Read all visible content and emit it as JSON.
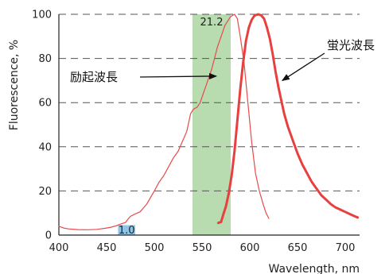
{
  "chart_data": {
    "type": "line",
    "xlabel": "Wavelength, nm",
    "ylabel": "Fluorescence, %",
    "xlim": [
      400,
      715
    ],
    "ylim": [
      0,
      100
    ],
    "x_ticks": [
      400,
      450,
      500,
      550,
      600,
      650,
      700
    ],
    "y_ticks": [
      0,
      20,
      40,
      60,
      80,
      100
    ],
    "grid": "horizontal-dashed",
    "bands": [
      {
        "x_range": [
          540,
          580
        ],
        "label": "21.2",
        "color": "#b8dbb0"
      },
      {
        "x_range": [
          462,
          480
        ],
        "label": "1.0",
        "color": "#8ec6e8"
      }
    ],
    "series": [
      {
        "color": "#e84a4a",
        "points": [
          [
            400,
            4
          ],
          [
            405,
            3.2
          ],
          [
            410,
            2.8
          ],
          [
            420,
            2.5
          ],
          [
            430,
            2.4
          ],
          [
            440,
            2.6
          ],
          [
            450,
            3.2
          ],
          [
            455,
            3.6
          ],
          [
            460,
            4.2
          ],
          [
            465,
            5
          ],
          [
            470,
            5.8
          ],
          [
            472,
            7
          ],
          [
            475,
            8.5
          ],
          [
            480,
            9.6
          ],
          [
            485,
            10.5
          ],
          [
            488,
            12
          ],
          [
            492,
            14
          ],
          [
            496,
            17
          ],
          [
            500,
            20
          ],
          [
            505,
            24
          ],
          [
            510,
            27
          ],
          [
            515,
            31
          ],
          [
            520,
            35
          ],
          [
            525,
            38
          ],
          [
            528,
            41
          ],
          [
            531,
            44
          ],
          [
            534,
            47
          ],
          [
            536,
            51
          ],
          [
            538,
            55
          ],
          [
            541,
            57
          ],
          [
            545,
            58
          ],
          [
            548,
            60
          ],
          [
            552,
            65
          ],
          [
            556,
            70
          ],
          [
            560,
            75
          ],
          [
            563,
            80
          ],
          [
            566,
            85
          ],
          [
            570,
            90
          ],
          [
            574,
            95
          ],
          [
            577,
            97
          ],
          [
            580,
            99
          ],
          [
            584,
            100
          ],
          [
            587,
            98
          ],
          [
            590,
            90
          ],
          [
            594,
            78
          ],
          [
            598,
            60
          ],
          [
            602,
            42
          ],
          [
            606,
            28
          ],
          [
            610,
            20
          ],
          [
            614,
            14
          ],
          [
            617,
            10
          ],
          [
            620,
            7.5
          ]
        ]
      },
      {
        "color": "#e8403e",
        "points": [
          [
            567,
            5.5
          ],
          [
            570,
            6
          ],
          [
            572,
            9
          ],
          [
            575,
            13
          ],
          [
            578,
            19
          ],
          [
            581,
            27
          ],
          [
            584,
            38
          ],
          [
            587,
            52
          ],
          [
            590,
            66
          ],
          [
            593,
            78
          ],
          [
            596,
            88
          ],
          [
            599,
            94
          ],
          [
            602,
            97.5
          ],
          [
            605,
            99.5
          ],
          [
            609,
            100
          ],
          [
            612,
            99.5
          ],
          [
            615,
            98
          ],
          [
            618,
            94
          ],
          [
            621,
            89
          ],
          [
            624,
            82
          ],
          [
            627,
            74
          ],
          [
            630,
            67
          ],
          [
            633,
            61
          ],
          [
            636,
            55
          ],
          [
            640,
            49
          ],
          [
            645,
            43
          ],
          [
            650,
            37
          ],
          [
            655,
            32
          ],
          [
            660,
            28
          ],
          [
            665,
            24
          ],
          [
            670,
            21
          ],
          [
            675,
            18
          ],
          [
            680,
            16
          ],
          [
            685,
            14
          ],
          [
            690,
            12.5
          ],
          [
            695,
            11.5
          ],
          [
            700,
            10.5
          ],
          [
            705,
            9.5
          ],
          [
            710,
            8.5
          ],
          [
            713,
            8
          ]
        ]
      }
    ],
    "annotations": [
      {
        "text": "励起波長",
        "points_to": [
          565,
          72
        ]
      },
      {
        "text": "蛍光波長",
        "points_to": [
          634,
          70
        ]
      }
    ]
  }
}
